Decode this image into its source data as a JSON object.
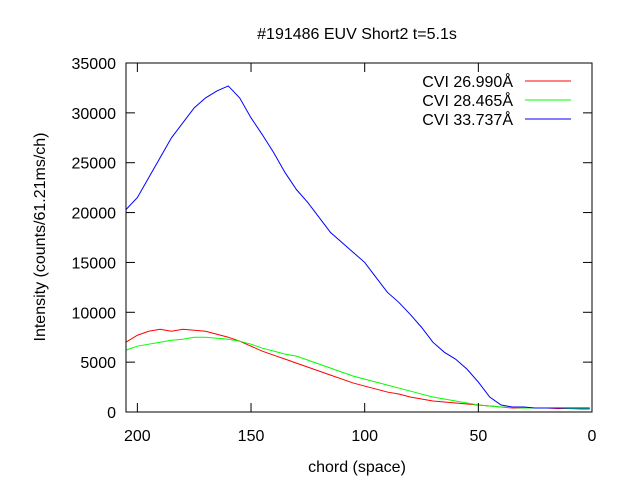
{
  "chart_data": {
    "type": "line",
    "title": "#191486 EUV Short2 t=5.1s",
    "xlabel": "chord (space)",
    "ylabel": "Intensity (counts/61.21ms/ch)",
    "xlim": [
      205,
      0
    ],
    "ylim": [
      0,
      35000
    ],
    "x_reversed": true,
    "grid": false,
    "legend_position": "top-right",
    "x_ticks": [
      "200",
      "150",
      "100",
      "50",
      "0"
    ],
    "y_ticks": [
      "0",
      "5000",
      "10000",
      "15000",
      "20000",
      "25000",
      "30000",
      "35000"
    ],
    "series": [
      {
        "name": "CVI 26.990Å",
        "color": "#ff0000",
        "points": [
          [
            205,
            7000
          ],
          [
            200,
            7700
          ],
          [
            195,
            8100
          ],
          [
            190,
            8300
          ],
          [
            185,
            8100
          ],
          [
            180,
            8300
          ],
          [
            175,
            8200
          ],
          [
            170,
            8100
          ],
          [
            165,
            7800
          ],
          [
            160,
            7500
          ],
          [
            155,
            7100
          ],
          [
            150,
            6600
          ],
          [
            145,
            6100
          ],
          [
            140,
            5700
          ],
          [
            135,
            5300
          ],
          [
            130,
            4900
          ],
          [
            125,
            4500
          ],
          [
            120,
            4100
          ],
          [
            115,
            3700
          ],
          [
            110,
            3300
          ],
          [
            105,
            2900
          ],
          [
            100,
            2600
          ],
          [
            95,
            2300
          ],
          [
            90,
            2000
          ],
          [
            85,
            1800
          ],
          [
            80,
            1500
          ],
          [
            75,
            1300
          ],
          [
            70,
            1100
          ],
          [
            65,
            1000
          ],
          [
            60,
            900
          ],
          [
            55,
            800
          ],
          [
            50,
            700
          ],
          [
            45,
            600
          ],
          [
            40,
            500
          ],
          [
            35,
            400
          ],
          [
            30,
            400
          ],
          [
            25,
            400
          ],
          [
            20,
            400
          ],
          [
            15,
            350
          ],
          [
            10,
            350
          ],
          [
            5,
            300
          ],
          [
            1,
            300
          ]
        ]
      },
      {
        "name": "CVI 28.465Å",
        "color": "#00ff00",
        "points": [
          [
            205,
            6200
          ],
          [
            200,
            6600
          ],
          [
            195,
            6800
          ],
          [
            190,
            7000
          ],
          [
            185,
            7200
          ],
          [
            180,
            7300
          ],
          [
            175,
            7500
          ],
          [
            170,
            7500
          ],
          [
            165,
            7400
          ],
          [
            160,
            7300
          ],
          [
            155,
            7100
          ],
          [
            150,
            6800
          ],
          [
            145,
            6400
          ],
          [
            140,
            6100
          ],
          [
            135,
            5800
          ],
          [
            130,
            5600
          ],
          [
            125,
            5200
          ],
          [
            120,
            4800
          ],
          [
            115,
            4400
          ],
          [
            110,
            4000
          ],
          [
            105,
            3600
          ],
          [
            100,
            3300
          ],
          [
            95,
            3000
          ],
          [
            90,
            2700
          ],
          [
            85,
            2400
          ],
          [
            80,
            2100
          ],
          [
            75,
            1800
          ],
          [
            70,
            1500
          ],
          [
            65,
            1300
          ],
          [
            60,
            1100
          ],
          [
            55,
            900
          ],
          [
            50,
            700
          ],
          [
            45,
            600
          ],
          [
            40,
            500
          ],
          [
            35,
            450
          ],
          [
            30,
            400
          ],
          [
            25,
            400
          ],
          [
            20,
            400
          ],
          [
            15,
            400
          ],
          [
            10,
            350
          ],
          [
            5,
            350
          ],
          [
            1,
            350
          ]
        ]
      },
      {
        "name": "CVI 33.737Å",
        "color": "#0000ff",
        "points": [
          [
            205,
            20300
          ],
          [
            200,
            21500
          ],
          [
            195,
            23500
          ],
          [
            190,
            25500
          ],
          [
            185,
            27500
          ],
          [
            180,
            29000
          ],
          [
            175,
            30500
          ],
          [
            170,
            31500
          ],
          [
            165,
            32200
          ],
          [
            160,
            32700
          ],
          [
            155,
            31500
          ],
          [
            150,
            29500
          ],
          [
            145,
            27800
          ],
          [
            140,
            26000
          ],
          [
            135,
            24000
          ],
          [
            130,
            22300
          ],
          [
            125,
            21000
          ],
          [
            120,
            19500
          ],
          [
            115,
            18000
          ],
          [
            110,
            17000
          ],
          [
            105,
            16000
          ],
          [
            100,
            15000
          ],
          [
            95,
            13500
          ],
          [
            90,
            12000
          ],
          [
            85,
            11000
          ],
          [
            80,
            9800
          ],
          [
            75,
            8500
          ],
          [
            70,
            7000
          ],
          [
            65,
            6000
          ],
          [
            60,
            5300
          ],
          [
            55,
            4300
          ],
          [
            50,
            3000
          ],
          [
            45,
            1500
          ],
          [
            40,
            700
          ],
          [
            35,
            500
          ],
          [
            30,
            500
          ],
          [
            25,
            400
          ],
          [
            20,
            400
          ],
          [
            15,
            400
          ],
          [
            10,
            400
          ],
          [
            5,
            400
          ],
          [
            1,
            400
          ]
        ]
      }
    ]
  }
}
